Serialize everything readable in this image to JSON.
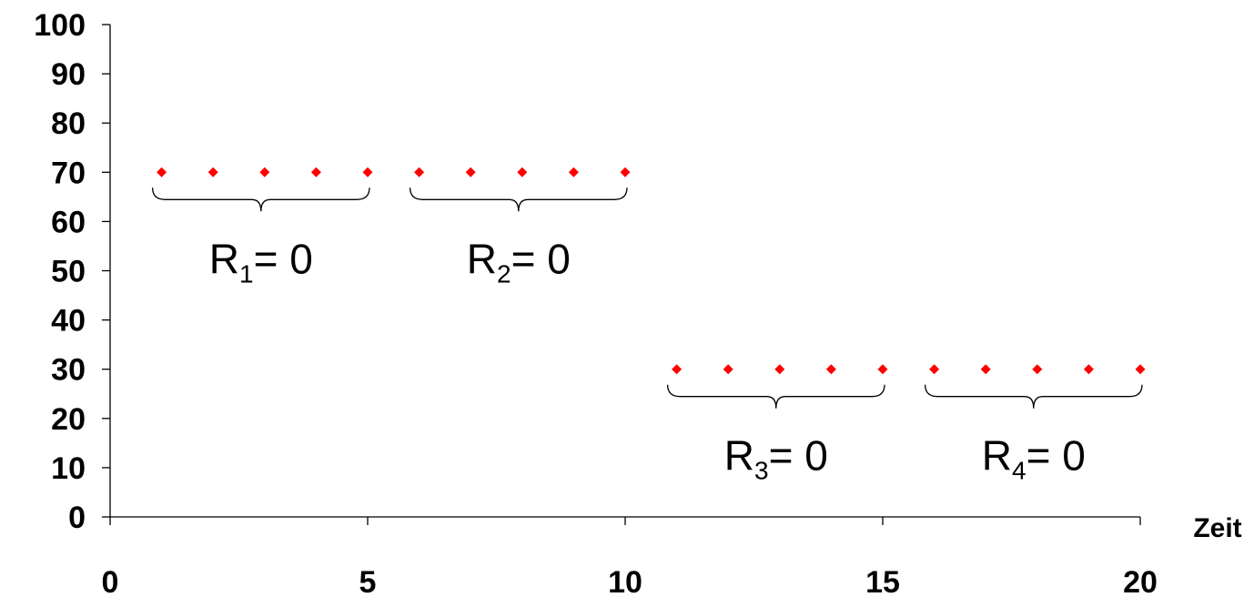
{
  "chart_data": {
    "type": "scatter",
    "title": "",
    "xlabel": "Zeit",
    "ylabel": "",
    "xlim": [
      0,
      20
    ],
    "ylim": [
      0,
      100
    ],
    "x_ticks": [
      0,
      5,
      10,
      15,
      20
    ],
    "y_ticks": [
      0,
      10,
      20,
      30,
      40,
      50,
      60,
      70,
      80,
      90,
      100
    ],
    "grid": false,
    "legend": false,
    "series": [
      {
        "marker": "diamond",
        "color": "#ff0000",
        "points": [
          {
            "x": 1,
            "y": 70
          },
          {
            "x": 2,
            "y": 70
          },
          {
            "x": 3,
            "y": 70
          },
          {
            "x": 4,
            "y": 70
          },
          {
            "x": 5,
            "y": 70
          },
          {
            "x": 6,
            "y": 70
          },
          {
            "x": 7,
            "y": 70
          },
          {
            "x": 8,
            "y": 70
          },
          {
            "x": 9,
            "y": 70
          },
          {
            "x": 10,
            "y": 70
          },
          {
            "x": 11,
            "y": 30
          },
          {
            "x": 12,
            "y": 30
          },
          {
            "x": 13,
            "y": 30
          },
          {
            "x": 14,
            "y": 30
          },
          {
            "x": 15,
            "y": 30
          },
          {
            "x": 16,
            "y": 30
          },
          {
            "x": 17,
            "y": 30
          },
          {
            "x": 18,
            "y": 30
          },
          {
            "x": 19,
            "y": 30
          },
          {
            "x": 20,
            "y": 30
          }
        ]
      }
    ],
    "annotations": [
      {
        "base": "R",
        "sub": "1",
        "rest": "= 0",
        "x_from": 1,
        "x_to": 5,
        "y": 70
      },
      {
        "base": "R",
        "sub": "2",
        "rest": "= 0",
        "x_from": 6,
        "x_to": 10,
        "y": 70
      },
      {
        "base": "R",
        "sub": "3",
        "rest": "= 0",
        "x_from": 11,
        "x_to": 15,
        "y": 30
      },
      {
        "base": "R",
        "sub": "4",
        "rest": "= 0",
        "x_from": 16,
        "x_to": 20,
        "y": 30
      }
    ]
  }
}
